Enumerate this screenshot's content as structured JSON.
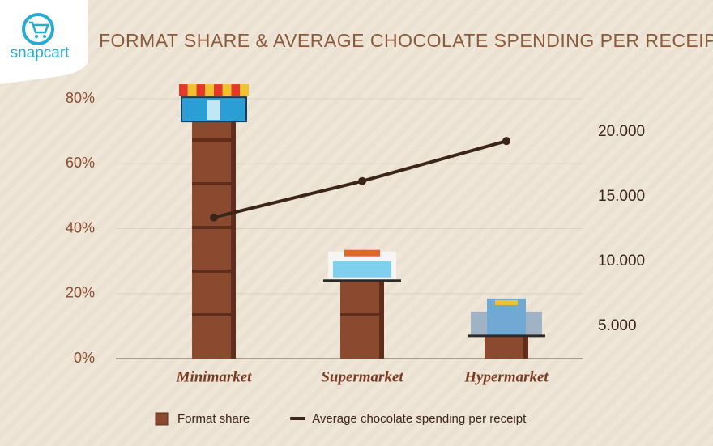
{
  "brand": "snapcart",
  "chart_data": {
    "type": "bar",
    "title": "FORMAT SHARE & AVERAGE CHOCOLATE SPENDING PER RECEIPT",
    "categories": [
      "Minimarket",
      "Supermarket",
      "Hypermarket"
    ],
    "series": [
      {
        "name": "Format share",
        "type": "bar",
        "color": "#8b4a2f",
        "values": [
          73,
          24,
          7
        ]
      },
      {
        "name": "Average chocolate spending per receipt",
        "type": "line",
        "axis": "y2",
        "color": "#3a2518",
        "values": [
          13400,
          16200,
          19300
        ]
      }
    ],
    "ylim": [
      0,
      80
    ],
    "yticks": [
      {
        "value": 0,
        "label": "0%"
      },
      {
        "value": 20,
        "label": "20%"
      },
      {
        "value": 40,
        "label": "40%"
      },
      {
        "value": 60,
        "label": "60%"
      },
      {
        "value": 80,
        "label": "80%"
      }
    ],
    "y2lim": [
      2500,
      22560
    ],
    "y2ticks": [
      {
        "value": 5000,
        "label": "5.000"
      },
      {
        "value": 10000,
        "label": "10.000"
      },
      {
        "value": 15000,
        "label": "15.000"
      },
      {
        "value": 20000,
        "label": "20.000"
      }
    ],
    "grid": true
  }
}
